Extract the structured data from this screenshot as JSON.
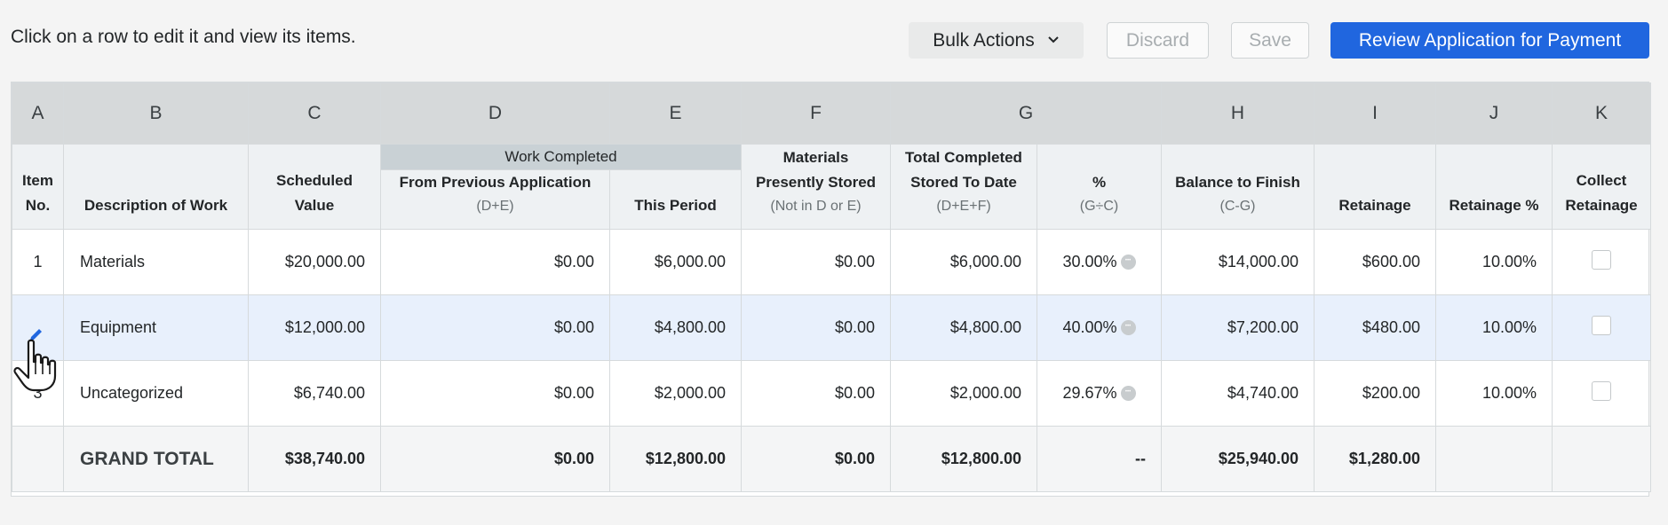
{
  "hint": "Click on a row to edit it and view its items.",
  "toolbar": {
    "bulk_label": "Bulk Actions",
    "discard_label": "Discard",
    "save_label": "Save",
    "review_label": "Review Application for Payment"
  },
  "columns": {
    "letters": [
      "A",
      "B",
      "C",
      "D",
      "E",
      "F",
      "G",
      "H",
      "I",
      "J",
      "K"
    ],
    "item_no": [
      "Item",
      "No."
    ],
    "description": "Description of Work",
    "scheduled": [
      "Scheduled",
      "Value"
    ],
    "work_completed_group": "Work Completed",
    "from_prev": "From Previous Application",
    "from_prev_sub": "(D+E)",
    "this_period": "This Period",
    "materials": [
      "Materials",
      "Presently Stored"
    ],
    "materials_sub": "(Not in D or E)",
    "total_completed": [
      "Total Completed",
      "Stored To Date"
    ],
    "total_completed_sub": "(D+E+F)",
    "pct": "%",
    "pct_sub": "(G÷C)",
    "balance": "Balance to Finish",
    "balance_sub": "(C-G)",
    "retainage": "Retainage",
    "retainage_pct": "Retainage %",
    "collect": [
      "Collect",
      "Retainage"
    ]
  },
  "rows": [
    {
      "item": "1",
      "description": "Materials",
      "scheduled": "$20,000.00",
      "from_prev": "$0.00",
      "this_period": "$6,000.00",
      "materials": "$0.00",
      "total": "$6,000.00",
      "pct": "30.00%",
      "balance": "$14,000.00",
      "retainage": "$600.00",
      "retainage_pct": "10.00%"
    },
    {
      "item": "",
      "description": "Equipment",
      "scheduled": "$12,000.00",
      "from_prev": "$0.00",
      "this_period": "$4,800.00",
      "materials": "$0.00",
      "total": "$4,800.00",
      "pct": "40.00%",
      "balance": "$7,200.00",
      "retainage": "$480.00",
      "retainage_pct": "10.00%"
    },
    {
      "item": "3",
      "description": "Uncategorized",
      "scheduled": "$6,740.00",
      "from_prev": "$0.00",
      "this_period": "$2,000.00",
      "materials": "$0.00",
      "total": "$2,000.00",
      "pct": "29.67%",
      "balance": "$4,740.00",
      "retainage": "$200.00",
      "retainage_pct": "10.00%"
    }
  ],
  "grand_total": {
    "label": "GRAND TOTAL",
    "scheduled": "$38,740.00",
    "from_prev": "$0.00",
    "this_period": "$12,800.00",
    "materials": "$0.00",
    "total": "$12,800.00",
    "pct": "--",
    "balance": "$25,940.00",
    "retainage": "$1,280.00"
  },
  "colors": {
    "accent": "#2066df",
    "selected_row": "#e8f0fc"
  }
}
